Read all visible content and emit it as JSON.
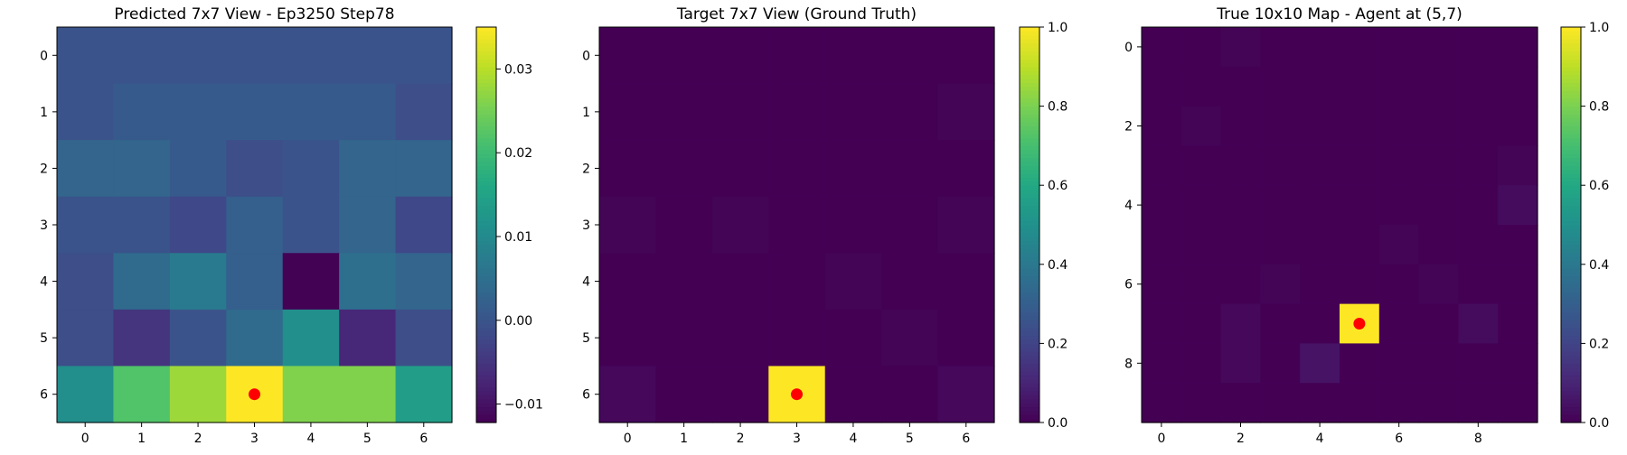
{
  "chart_data": [
    {
      "type": "heatmap",
      "title": "Predicted 7x7 View - Ep3250 Step78",
      "x_ticks": [
        "0",
        "1",
        "2",
        "3",
        "4",
        "5",
        "6"
      ],
      "y_ticks": [
        "0",
        "1",
        "2",
        "3",
        "4",
        "5",
        "6"
      ],
      "x_range": [
        -0.5,
        6.5
      ],
      "y_range": [
        -0.5,
        6.5
      ],
      "colormap": "viridis",
      "vmin": -0.0122,
      "vmax": 0.035,
      "colorbar_ticks": [
        "0.03",
        "0.02",
        "0.01",
        "0.00",
        "−0.01"
      ],
      "colorbar_tick_values": [
        0.03,
        0.02,
        0.01,
        0.0,
        -0.01
      ],
      "values": [
        [
          0.0,
          0.0,
          0.0,
          0.0,
          0.0,
          0.0,
          0.0
        ],
        [
          0.0,
          0.001,
          0.001,
          0.001,
          0.001,
          0.001,
          -0.001
        ],
        [
          0.003,
          0.003,
          0.001,
          -0.001,
          0.0,
          0.003,
          0.003
        ],
        [
          0.0,
          0.0,
          -0.002,
          0.002,
          0.0,
          0.003,
          -0.002
        ],
        [
          -0.001,
          0.004,
          0.007,
          0.002,
          -0.012,
          0.005,
          0.003
        ],
        [
          -0.001,
          -0.005,
          0.0,
          0.004,
          0.011,
          -0.007,
          -0.001
        ],
        [
          0.011,
          0.022,
          0.028,
          0.035,
          0.026,
          0.026,
          0.014
        ]
      ],
      "marker": {
        "row": 6,
        "col": 3,
        "color": "#ff0000"
      }
    },
    {
      "type": "heatmap",
      "title": "Target 7x7 View (Ground Truth)",
      "x_ticks": [
        "0",
        "1",
        "2",
        "3",
        "4",
        "5",
        "6"
      ],
      "y_ticks": [
        "0",
        "1",
        "2",
        "3",
        "4",
        "5",
        "6"
      ],
      "x_range": [
        -0.5,
        6.5
      ],
      "y_range": [
        -0.5,
        6.5
      ],
      "colormap": "viridis",
      "vmin": 0.0,
      "vmax": 1.0,
      "colorbar_ticks": [
        "1.0",
        "0.8",
        "0.6",
        "0.4",
        "0.2",
        "0.0"
      ],
      "colorbar_tick_values": [
        1.0,
        0.8,
        0.6,
        0.4,
        0.2,
        0.0
      ],
      "values": [
        [
          0.0,
          0.0,
          0.0,
          0.0,
          0.0,
          0.0,
          0.0
        ],
        [
          0.0,
          0.0,
          0.0,
          0.0,
          0.0,
          0.0,
          0.01
        ],
        [
          0.0,
          0.0,
          0.0,
          0.0,
          0.0,
          0.0,
          0.0
        ],
        [
          0.01,
          0.0,
          0.01,
          0.0,
          0.0,
          0.0,
          0.01
        ],
        [
          0.0,
          0.0,
          0.0,
          0.0,
          0.01,
          0.0,
          0.0
        ],
        [
          0.0,
          0.0,
          0.0,
          0.0,
          0.0,
          0.01,
          0.0
        ],
        [
          0.02,
          0.0,
          0.0,
          1.0,
          0.0,
          0.0,
          0.02
        ]
      ],
      "marker": {
        "row": 6,
        "col": 3,
        "color": "#ff0000"
      }
    },
    {
      "type": "heatmap",
      "title": "True 10x10 Map - Agent at (5,7)",
      "x_ticks": [
        "0",
        "2",
        "4",
        "6",
        "8"
      ],
      "y_ticks": [
        "0",
        "2",
        "4",
        "6",
        "8"
      ],
      "x_range": [
        -0.5,
        9.5
      ],
      "y_range": [
        -0.5,
        9.5
      ],
      "colormap": "viridis",
      "vmin": 0.0,
      "vmax": 1.0,
      "colorbar_ticks": [
        "1.0",
        "0.8",
        "0.6",
        "0.4",
        "0.2",
        "0.0"
      ],
      "colorbar_tick_values": [
        1.0,
        0.8,
        0.6,
        0.4,
        0.2,
        0.0
      ],
      "values": [
        [
          0.0,
          0.0,
          0.01,
          0.0,
          0.0,
          0.0,
          0.0,
          0.0,
          0.0,
          0.0
        ],
        [
          0.0,
          0.0,
          0.0,
          0.0,
          0.0,
          0.0,
          0.0,
          0.0,
          0.0,
          0.0
        ],
        [
          0.0,
          0.01,
          0.0,
          0.0,
          0.0,
          0.0,
          0.0,
          0.0,
          0.0,
          0.0
        ],
        [
          0.0,
          0.0,
          0.0,
          0.0,
          0.0,
          0.0,
          0.0,
          0.0,
          0.0,
          0.01
        ],
        [
          0.0,
          0.0,
          0.0,
          0.0,
          0.0,
          0.0,
          0.0,
          0.0,
          0.0,
          0.03
        ],
        [
          0.0,
          0.0,
          0.0,
          0.0,
          0.0,
          0.0,
          0.01,
          0.0,
          0.0,
          0.0
        ],
        [
          0.0,
          0.0,
          0.0,
          0.01,
          0.0,
          0.0,
          0.0,
          0.01,
          0.0,
          0.0
        ],
        [
          0.0,
          0.0,
          0.02,
          0.0,
          0.0,
          1.0,
          0.0,
          0.0,
          0.03,
          0.0
        ],
        [
          0.0,
          0.0,
          0.02,
          0.0,
          0.05,
          0.0,
          0.0,
          0.0,
          0.0,
          0.0
        ],
        [
          0.0,
          0.0,
          0.0,
          0.0,
          0.0,
          0.0,
          0.0,
          0.0,
          0.0,
          0.0
        ]
      ],
      "marker": {
        "row": 7,
        "col": 5,
        "color": "#ff0000"
      }
    }
  ]
}
